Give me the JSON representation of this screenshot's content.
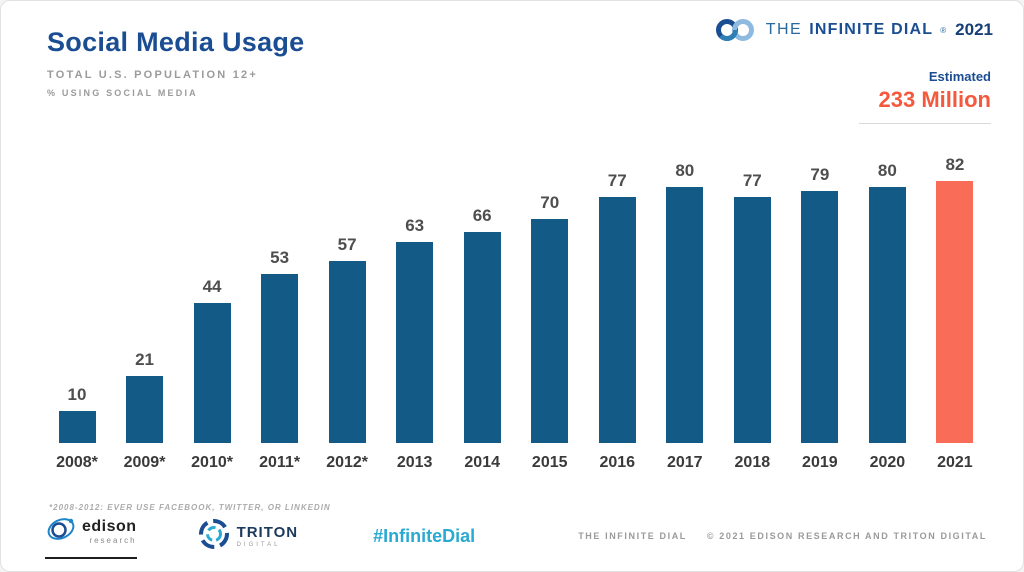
{
  "header": {
    "title": "Social Media Usage",
    "subtitle1": "TOTAL U.S. POPULATION 12+",
    "subtitle2": "% USING SOCIAL MEDIA",
    "estimated_label": "Estimated",
    "estimated_value": "233 Million"
  },
  "brand": {
    "the": "THE",
    "name": "INFINITE DIAL",
    "reg": "®",
    "year": "2021"
  },
  "chart_data": {
    "type": "bar",
    "title": "Social Media Usage",
    "subtitle": "Total U.S. Population 12+, % Using Social Media",
    "categories": [
      "2008*",
      "2009*",
      "2010*",
      "2011*",
      "2012*",
      "2013",
      "2014",
      "2015",
      "2016",
      "2017",
      "2018",
      "2019",
      "2020",
      "2021"
    ],
    "values": [
      10,
      21,
      44,
      53,
      57,
      63,
      66,
      70,
      77,
      80,
      77,
      79,
      80,
      82
    ],
    "xlabel": "",
    "ylabel": "% Using Social Media",
    "ylim": [
      0,
      90
    ],
    "grid": false,
    "legend": false,
    "bar_color": "#145A86",
    "highlight_color": "#F96D58",
    "highlight_index": 13,
    "annotation": "Estimated 233 Million"
  },
  "footer": {
    "footnote": "*2008-2012: EVER USE FACEBOOK, TWITTER, OR LINKEDIN",
    "edison_name": "edison",
    "edison_sub": "research",
    "triton_name": "TRITON",
    "triton_sub": "DIGITAL",
    "hashtag": "#InfiniteDial",
    "copyright_left": "THE INFINITE DIAL",
    "copyright_right": "© 2021 EDISON RESEARCH AND TRITON DIGITAL"
  }
}
